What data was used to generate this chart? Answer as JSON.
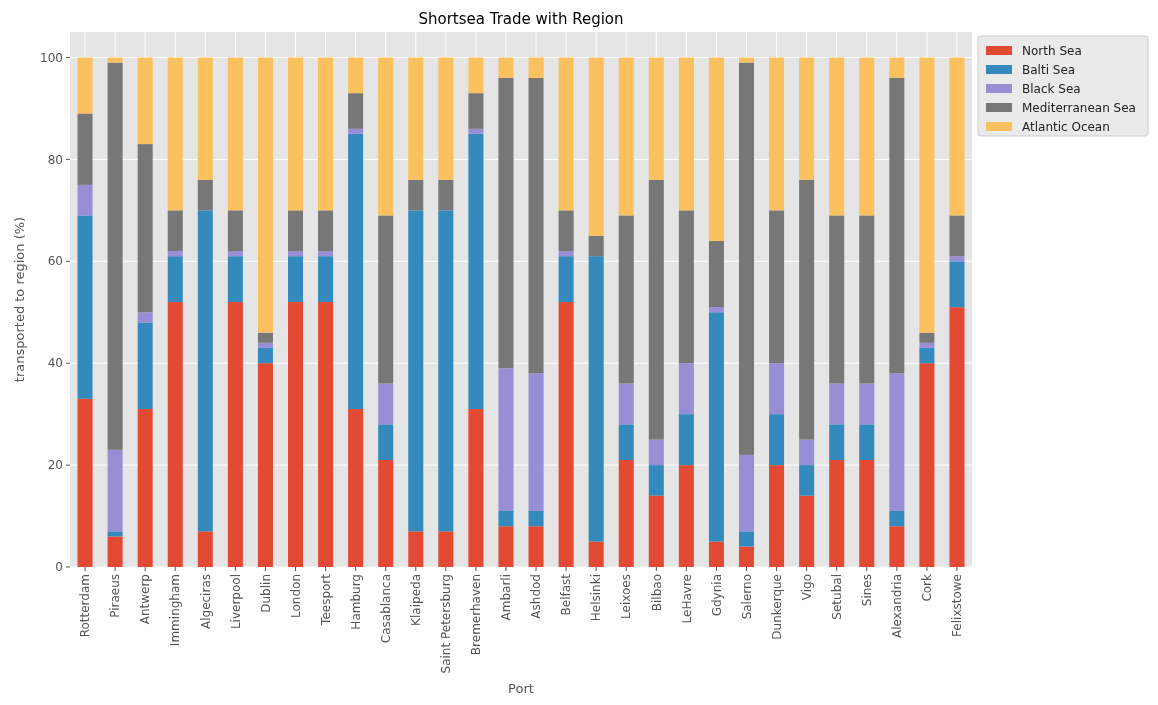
{
  "chart_data": {
    "type": "bar",
    "title": "Shortsea Trade with Region",
    "xlabel": "Port",
    "ylabel": "transported to region (%)",
    "categories": [
      "Rotterdam",
      "Piraeus",
      "Antwerp",
      "Immingham",
      "Algeciras",
      "Liverpool",
      "Dublin",
      "London",
      "Teesport",
      "Hamburg",
      "Casablanca",
      "Klaipeda",
      "Saint Petersburg",
      "Bremerhaven",
      "Ambarli",
      "Ashdod",
      "Belfast",
      "Helsinki",
      "Leixoes",
      "Bilbao",
      "LeHavre",
      "Gdynia",
      "Salerno",
      "Dunkerque",
      "Vigo",
      "Setubal",
      "Sines",
      "Alexandria",
      "Cork",
      "Felixstowe"
    ],
    "stacked": true,
    "series": [
      {
        "name": "North Sea",
        "color": "#e24a33",
        "values": [
          33,
          6,
          31,
          52,
          7,
          52,
          40,
          52,
          52,
          31,
          21,
          7,
          7,
          31,
          8,
          8,
          52,
          5,
          21,
          14,
          20,
          5,
          4,
          20,
          14,
          21,
          21,
          8,
          40,
          51
        ]
      },
      {
        "name": "Balti Sea",
        "color": "#348abd",
        "values": [
          36,
          1,
          17,
          9,
          63,
          9,
          3,
          9,
          9,
          54,
          7,
          63,
          63,
          54,
          3,
          3,
          9,
          56,
          7,
          6,
          10,
          45,
          3,
          10,
          6,
          7,
          7,
          3,
          3,
          9
        ]
      },
      {
        "name": "Black Sea",
        "color": "#988ed5",
        "values": [
          6,
          16,
          2,
          1,
          0,
          1,
          1,
          1,
          1,
          1,
          8,
          0,
          0,
          1,
          28,
          27,
          1,
          0,
          8,
          5,
          10,
          1,
          15,
          10,
          5,
          8,
          8,
          27,
          1,
          1
        ]
      },
      {
        "name": "Mediterranean Sea",
        "color": "#777777",
        "values": [
          14,
          76,
          33,
          8,
          6,
          8,
          2,
          8,
          8,
          7,
          33,
          6,
          6,
          7,
          57,
          58,
          8,
          4,
          33,
          51,
          30,
          13,
          77,
          30,
          51,
          33,
          33,
          58,
          2,
          8
        ]
      },
      {
        "name": "Atlantic Ocean",
        "color": "#fbc15e",
        "values": [
          11,
          1,
          17,
          30,
          24,
          30,
          54,
          30,
          30,
          7,
          31,
          24,
          24,
          7,
          4,
          4,
          30,
          35,
          31,
          24,
          30,
          36,
          1,
          30,
          24,
          31,
          31,
          4,
          54,
          31
        ]
      }
    ],
    "ylim": [
      0,
      105
    ],
    "yticks": [
      0,
      20,
      40,
      60,
      80,
      100
    ],
    "grid": true,
    "legend": "top right"
  }
}
